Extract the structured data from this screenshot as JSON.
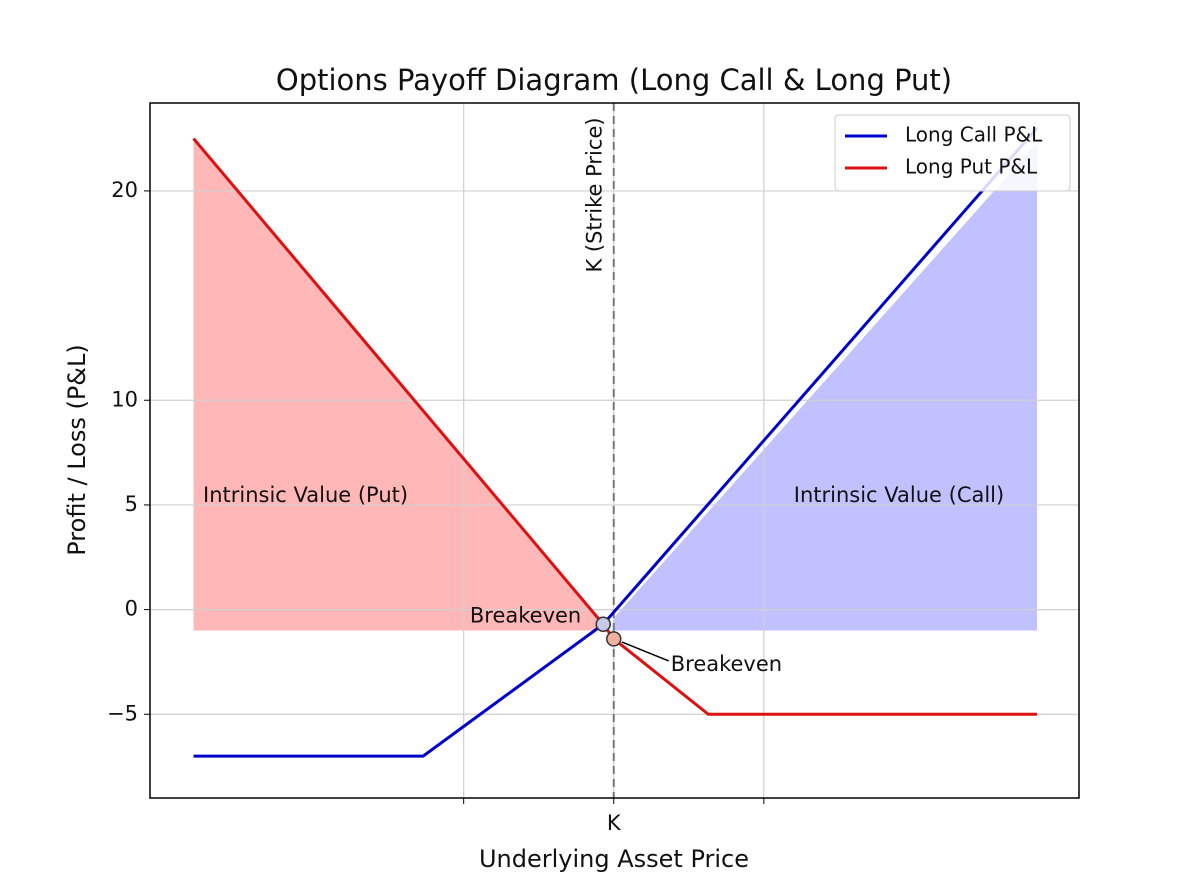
{
  "chart_data": {
    "type": "line",
    "title": "Options Payoff Diagram (Long Call & Long Put)",
    "x_label": "Underlying Asset Price",
    "y_label": "Profit / Loss (P&L)",
    "xlim": [
      69.1,
      131
    ],
    "ylim": [
      -9,
      24.2
    ],
    "xticks": [
      {
        "value": 90,
        "label": null
      },
      {
        "value": 100,
        "label": "K"
      },
      {
        "value": 110,
        "label": null
      }
    ],
    "yticks": [
      -5,
      0,
      5,
      10,
      20
    ],
    "grid": true,
    "legend": "upper right",
    "series": [
      {
        "name": "Long Call P&L",
        "color": "#0000cc",
        "x": [
          72,
          87.3,
          99.3,
          128.2
        ],
        "values": [
          -7,
          -7,
          -0.7,
          23
        ]
      },
      {
        "name": "Long Put P&L",
        "color": "#dd1111",
        "x": [
          72,
          99.3,
          100,
          106.3,
          128.2
        ],
        "values": [
          22.5,
          -0.7,
          -1.4,
          -5,
          -5
        ]
      }
    ],
    "areas": [
      {
        "color": "#ff9999",
        "base": -1,
        "x": [
          72,
          99.3
        ],
        "values": [
          22.5,
          -0.7
        ]
      },
      {
        "color": "#a6a6ff",
        "base": -1,
        "x": [
          100,
          128.2
        ],
        "values": [
          -0.4,
          22.3
        ]
      }
    ],
    "strike_line_label": "K (Strike Price)",
    "annotations": [
      {
        "text": "Intrinsic Value (Put)"
      },
      {
        "text": "Intrinsic Value (Call)"
      },
      {
        "text": "Breakeven",
        "x": 99.3,
        "y": -0.7,
        "color": "#c8c8e8"
      },
      {
        "text": "Breakeven",
        "x": 100,
        "y": -1.4,
        "color": "#f2b0a0"
      }
    ]
  }
}
